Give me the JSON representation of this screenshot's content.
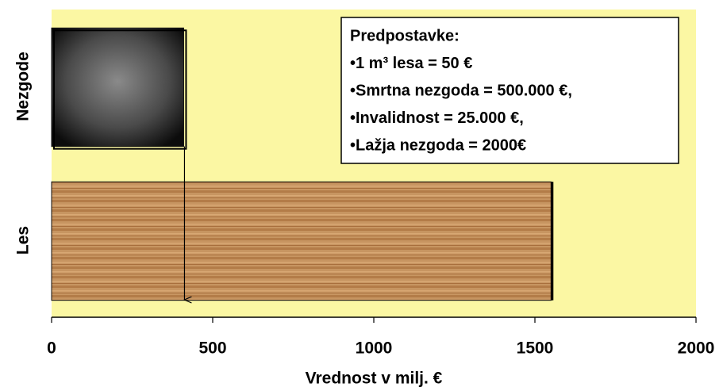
{
  "chart_data": {
    "type": "bar",
    "orientation": "horizontal",
    "categories": [
      "Nezgode",
      "Les"
    ],
    "values": [
      410,
      1550
    ],
    "xlim": [
      0,
      2000
    ],
    "xticks": [
      0,
      500,
      1000,
      1500,
      2000
    ],
    "xlabel": "Vrednost v milj. €",
    "annotation": [
      "Predpostavke:",
      "•1 m³ lesa = 50 €",
      "•Smrtna nezgoda = 500.000 €,",
      "•Invalidnost = 25.000 €,",
      "•Lažja nezgoda = 2000€"
    ]
  }
}
